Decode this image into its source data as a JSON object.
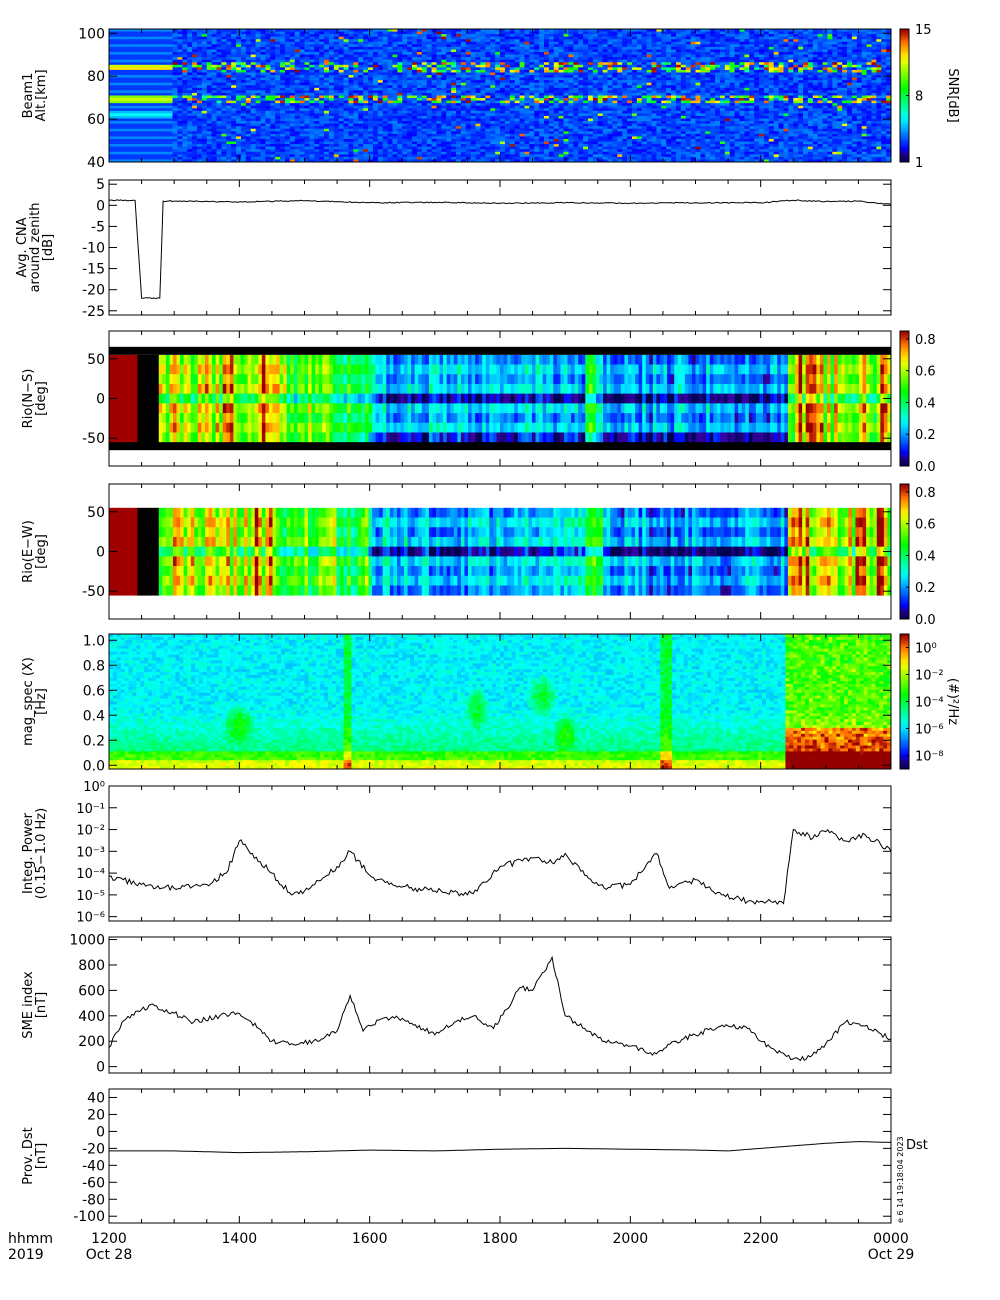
{
  "chart_data": [
    {
      "type": "heatmap",
      "ylabel": "Beam1\nAlt.[km]",
      "yticks": [
        "40",
        "60",
        "80",
        "100"
      ],
      "ylim": [
        40,
        102
      ],
      "colorbar": {
        "label": "SNR[dB]",
        "ticks": [
          "1",
          "8",
          "15"
        ],
        "range": [
          1,
          15
        ]
      },
      "bands_alt_km": [
        {
          "alt": 84,
          "snr": 11
        },
        {
          "alt": 69,
          "snr": 10
        },
        {
          "alt": 62,
          "snr": 4
        }
      ]
    },
    {
      "type": "line",
      "ylabel": "Avg. CNA\naround zenith\n[dB]",
      "yticks": [
        "5",
        "0",
        "-5",
        "-10",
        "-15",
        "-20",
        "-25"
      ],
      "ylim": [
        -26,
        6
      ],
      "x": [
        12.0,
        12.4,
        12.5,
        12.78,
        12.83,
        13.0,
        14.0,
        15.0,
        16.0,
        17.0,
        18.0,
        19.0,
        20.0,
        21.0,
        22.0,
        22.5,
        23.0,
        23.5,
        24.0
      ],
      "values": [
        1.2,
        1.2,
        -22,
        -22,
        1.0,
        1.0,
        0.8,
        1.1,
        0.6,
        0.7,
        0.5,
        0.6,
        0.5,
        0.6,
        0.6,
        1.2,
        0.9,
        1.0,
        0.2
      ]
    },
    {
      "type": "heatmap",
      "ylabel": "Rio(N−S)\n[deg]",
      "yticks": [
        "50",
        "0",
        "-50"
      ],
      "ylim": [
        -85,
        85
      ],
      "data_range_deg": [
        -55,
        55
      ],
      "colorbar": {
        "label": "",
        "ticks": [
          "0.0",
          "0.2",
          "0.4",
          "0.6",
          "0.8"
        ],
        "range": [
          0,
          0.85
        ]
      }
    },
    {
      "type": "heatmap",
      "ylabel": "Rio(E−W)\n[deg]",
      "yticks": [
        "50",
        "0",
        "-50"
      ],
      "ylim": [
        -85,
        85
      ],
      "data_range_deg": [
        -55,
        55
      ],
      "colorbar": {
        "label": "",
        "ticks": [
          "0.0",
          "0.2",
          "0.4",
          "0.6",
          "0.8"
        ],
        "range": [
          0,
          0.85
        ]
      }
    },
    {
      "type": "heatmap",
      "ylabel": "mag_spec (X)\n[Hz]",
      "yticks": [
        "0.0",
        "0.2",
        "0.4",
        "0.6",
        "0.8",
        "1.0"
      ],
      "ylim": [
        -0.03,
        1.05
      ],
      "colorbar": {
        "label": "(#)²/Hz",
        "ticks": [
          "10⁰",
          "10⁻²",
          "10⁻⁴",
          "10⁻⁶",
          "10⁻⁸"
        ],
        "log_range": [
          -9,
          1
        ]
      }
    },
    {
      "type": "line",
      "log_y": true,
      "ylabel": "Integ. Power\n(0.15−1.0 Hz)",
      "yticks": [
        "10⁰",
        "10⁻¹",
        "10⁻²",
        "10⁻³",
        "10⁻⁴",
        "10⁻⁵",
        "10⁻⁶"
      ],
      "ylim_log10": [
        -6.2,
        0
      ],
      "x": [
        12.0,
        12.5,
        13.0,
        13.5,
        13.8,
        14.0,
        14.2,
        14.5,
        14.8,
        15.0,
        15.5,
        15.7,
        16.0,
        16.3,
        16.7,
        17.0,
        17.5,
        17.8,
        18.0,
        18.5,
        18.8,
        19.0,
        19.3,
        19.6,
        20.0,
        20.4,
        20.6,
        21.0,
        21.4,
        21.8,
        22.0,
        22.35,
        22.5,
        22.8,
        23.0,
        23.3,
        23.6,
        24.0
      ],
      "values": [
        7e-05,
        3e-05,
        2e-05,
        3e-05,
        0.0001,
        0.003,
        0.0008,
        0.0001,
        1e-05,
        1.5e-05,
        0.0002,
        0.001,
        8e-05,
        3e-05,
        2e-05,
        1.5e-05,
        1e-05,
        4e-05,
        0.0002,
        0.0005,
        0.0003,
        0.0008,
        8e-05,
        2e-05,
        3e-05,
        0.0008,
        2e-05,
        5e-05,
        1e-05,
        5e-06,
        5e-06,
        4e-06,
        0.01,
        0.004,
        0.008,
        0.003,
        0.006,
        0.001
      ]
    },
    {
      "type": "line",
      "ylabel": "SME index\n[nT]",
      "yticks": [
        "0",
        "200",
        "400",
        "600",
        "800",
        "1000"
      ],
      "ylim": [
        -50,
        1020
      ],
      "x": [
        12.0,
        12.2,
        12.5,
        12.7,
        13.0,
        13.3,
        13.7,
        14.0,
        14.3,
        14.5,
        14.8,
        15.2,
        15.5,
        15.7,
        15.9,
        16.2,
        16.5,
        16.7,
        17.0,
        17.3,
        17.6,
        17.9,
        18.1,
        18.3,
        18.5,
        18.8,
        19.0,
        19.3,
        19.6,
        20.0,
        20.4,
        20.7,
        21.0,
        21.2,
        21.5,
        21.8,
        22.0,
        22.2,
        22.4,
        22.7,
        23.0,
        23.3,
        23.6,
        24.0
      ],
      "values": [
        150,
        350,
        450,
        480,
        420,
        350,
        400,
        420,
        300,
        200,
        180,
        200,
        280,
        560,
        280,
        380,
        380,
        330,
        250,
        350,
        400,
        300,
        450,
        620,
        600,
        860,
        400,
        300,
        200,
        160,
        100,
        200,
        250,
        290,
        320,
        300,
        200,
        140,
        80,
        60,
        180,
        350,
        320,
        220
      ]
    },
    {
      "type": "line",
      "ylabel": "Prov. Dst\n[nT]",
      "yticks": [
        "40",
        "20",
        "0",
        "-20",
        "-40",
        "-60",
        "-80",
        "-100"
      ],
      "ylim": [
        -108,
        50
      ],
      "x": [
        12.0,
        13.0,
        14.0,
        15.0,
        16.0,
        17.0,
        18.0,
        19.0,
        20.0,
        21.0,
        21.5,
        22.0,
        22.5,
        23.0,
        23.5,
        24.0
      ],
      "values": [
        -23,
        -23,
        -25,
        -24,
        -22,
        -23,
        -21,
        -20,
        -21,
        -22,
        -23,
        -20,
        -17,
        -14,
        -12,
        -13
      ],
      "series_label": "Dst",
      "stamp": "e  6 14 19:18:04 2023"
    }
  ],
  "time_axis": {
    "range_hours": [
      12,
      24
    ],
    "ticks": [
      "1200",
      "1400",
      "1600",
      "1800",
      "2000",
      "2200",
      "0000"
    ],
    "unit_label": "hhmm",
    "year_label": "2019",
    "date_start": "Oct 28",
    "date_end": "Oct 29"
  }
}
